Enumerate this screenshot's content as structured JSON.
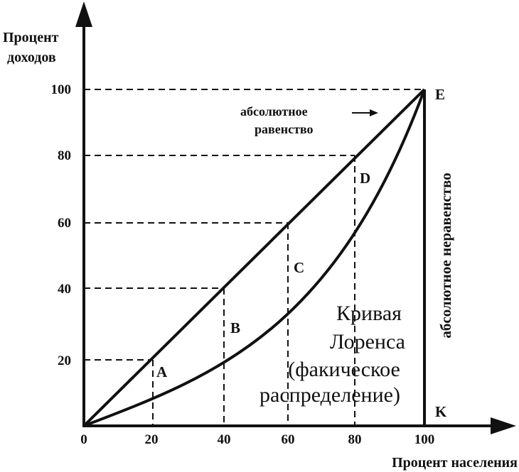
{
  "y_axis": {
    "title_line1": "Процент",
    "title_line2": "доходов",
    "ticks": [
      "20",
      "40",
      "60",
      "80",
      "100"
    ]
  },
  "x_axis": {
    "title": "Процент населения",
    "ticks": [
      "0",
      "20",
      "40",
      "60",
      "80",
      "100"
    ]
  },
  "equality_label": {
    "line1": "абсолютное",
    "line2": "равенство"
  },
  "inequality_label": "абсолютное неравенство",
  "lorenz_label": {
    "line1": "Кривая",
    "line2": "Лоренса",
    "line3": "(факическое",
    "line4": "распределение)"
  },
  "regions": {
    "a": "A",
    "b": "B",
    "c": "C",
    "d": "D"
  },
  "points": {
    "e": "E",
    "k": "K"
  },
  "colors": {
    "ink": "#111111",
    "background": "#ffffff"
  }
}
